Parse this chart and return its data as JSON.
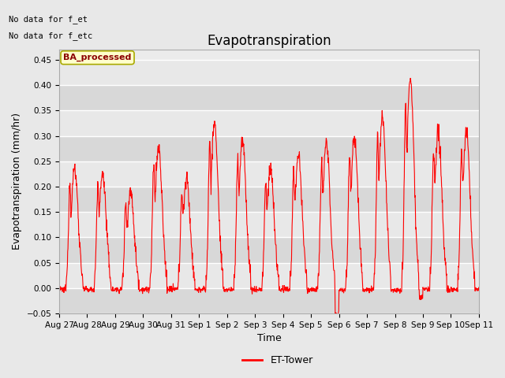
{
  "title": "Evapotranspiration",
  "xlabel": "Time",
  "ylabel": "Evapotranspiration (mm/hr)",
  "ylim": [
    -0.05,
    0.47
  ],
  "yticks": [
    -0.05,
    0.0,
    0.05,
    0.1,
    0.15,
    0.2,
    0.25,
    0.3,
    0.35,
    0.4,
    0.45
  ],
  "line_color": "red",
  "line_width": 0.8,
  "background_color": "#e8e8e8",
  "plot_bg_color": "#ebebeb",
  "grid_color": "white",
  "text_annotations": [
    "No data for f_et",
    "No data for f_etc"
  ],
  "legend_label": "ET-Tower",
  "legend_box_color": "#ffffcc",
  "legend_box_edgecolor": "#aaaa00",
  "legend_text_color": "#8B0000",
  "subtitle_label": "BA_processed",
  "xtick_labels": [
    "Aug 27",
    "Aug 28",
    "Aug 29",
    "Aug 30",
    "Aug 31",
    "Sep 1",
    "Sep 2",
    "Sep 3",
    "Sep 4",
    "Sep 5",
    "Sep 6",
    "Sep 7",
    "Sep 8",
    "Sep 9",
    "Sep 10",
    "Sep 11"
  ],
  "title_fontsize": 12,
  "axis_label_fontsize": 9,
  "tick_fontsize": 7.5
}
